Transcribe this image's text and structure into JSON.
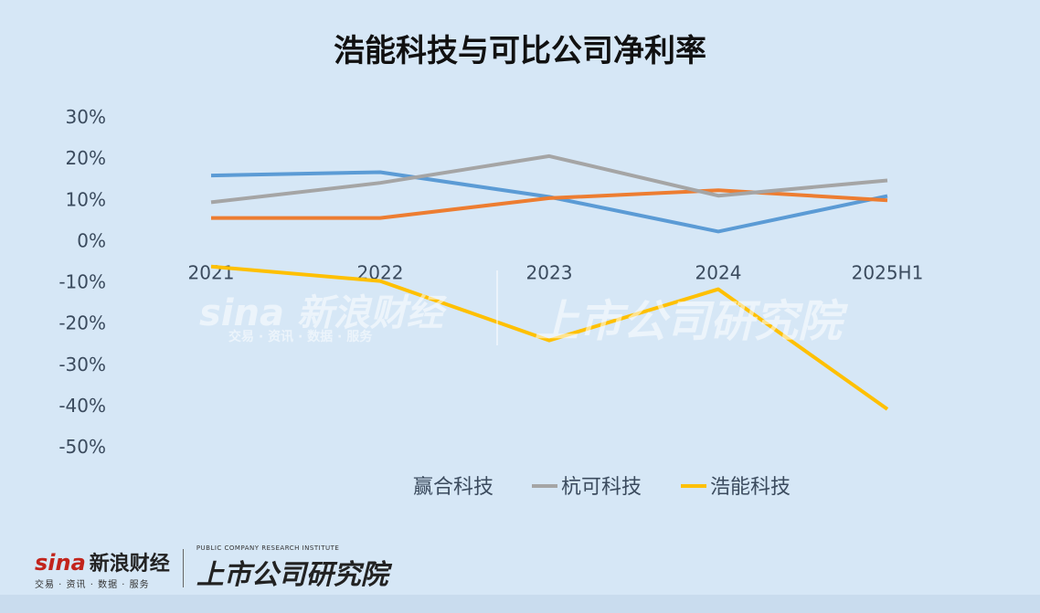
{
  "chart_data": {
    "type": "line",
    "title": "浩能科技与可比公司净利率",
    "categories": [
      "2021",
      "2022",
      "2023",
      "2024",
      "2025H1"
    ],
    "y_ticks": [
      "30%",
      "20%",
      "10%",
      "0%",
      "-10%",
      "-20%",
      "-30%",
      "-40%",
      "-50%"
    ],
    "ylim": [
      -50,
      30
    ],
    "series": [
      {
        "name": "赢合科技",
        "color": "#5b9bd5",
        "values": [
          15.8,
          16.6,
          10.6,
          2.2,
          10.8
        ]
      },
      {
        "name": "",
        "color": "#ed7d31",
        "values": [
          5.5,
          5.5,
          10.3,
          12.2,
          9.8
        ]
      },
      {
        "name": "杭可科技",
        "color": "#a5a5a5",
        "values": [
          9.3,
          14.0,
          20.5,
          10.9,
          14.6
        ]
      },
      {
        "name": "浩能科技",
        "color": "#ffc000",
        "values": [
          -6.3,
          -9.8,
          -24.2,
          -11.8,
          -40.9
        ]
      }
    ],
    "legend": "bottom",
    "grid": false
  },
  "watermark": {
    "sina_en": "sina",
    "sina_cn": "新浪财经",
    "sina_sub": "交易 · 资讯 · 数据 · 服务",
    "institute": "上市公司研究院",
    "institute_en": "PUBLIC COMPANY RESEARCH INSTITUTE"
  }
}
